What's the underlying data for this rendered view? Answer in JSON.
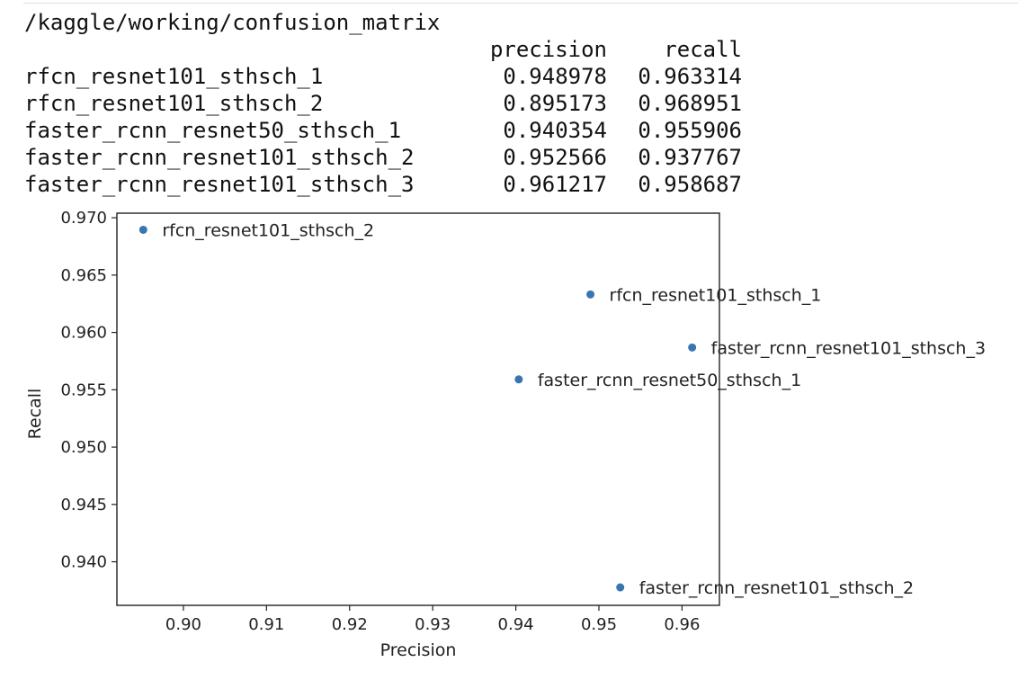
{
  "output": {
    "path": "/kaggle/working/confusion_matrix",
    "table": {
      "columns": [
        "precision",
        "recall"
      ],
      "rows": [
        {
          "name": "rfcn_resnet101_sthsch_1",
          "precision": "0.948978",
          "recall": "0.963314"
        },
        {
          "name": "rfcn_resnet101_sthsch_2",
          "precision": "0.895173",
          "recall": "0.968951"
        },
        {
          "name": "faster_rcnn_resnet50_sthsch_1",
          "precision": "0.940354",
          "recall": "0.955906"
        },
        {
          "name": "faster_rcnn_resnet101_sthsch_2",
          "precision": "0.952566",
          "recall": "0.937767"
        },
        {
          "name": "faster_rcnn_resnet101_sthsch_3",
          "precision": "0.961217",
          "recall": "0.958687"
        }
      ]
    }
  },
  "chart_data": {
    "type": "scatter",
    "title": "",
    "xlabel": "Precision",
    "ylabel": "Recall",
    "xlim": [
      0.892,
      0.9645
    ],
    "ylim": [
      0.9362,
      0.9704
    ],
    "xticks": [
      0.9,
      0.91,
      0.92,
      0.93,
      0.94,
      0.95,
      0.96
    ],
    "xtick_labels": [
      "0.90",
      "0.91",
      "0.92",
      "0.93",
      "0.94",
      "0.95",
      "0.96"
    ],
    "yticks": [
      0.94,
      0.945,
      0.95,
      0.955,
      0.96,
      0.965,
      0.97
    ],
    "ytick_labels": [
      "0.940",
      "0.945",
      "0.950",
      "0.955",
      "0.960",
      "0.965",
      "0.970"
    ],
    "grid": false,
    "point_color": "#3a75b0",
    "points": [
      {
        "label": "rfcn_resnet101_sthsch_1",
        "x": 0.948978,
        "y": 0.963314
      },
      {
        "label": "rfcn_resnet101_sthsch_2",
        "x": 0.895173,
        "y": 0.968951
      },
      {
        "label": "faster_rcnn_resnet50_sthsch_1",
        "x": 0.940354,
        "y": 0.955906
      },
      {
        "label": "faster_rcnn_resnet101_sthsch_2",
        "x": 0.952566,
        "y": 0.937767
      },
      {
        "label": "faster_rcnn_resnet101_sthsch_3",
        "x": 0.961217,
        "y": 0.958687
      }
    ]
  }
}
